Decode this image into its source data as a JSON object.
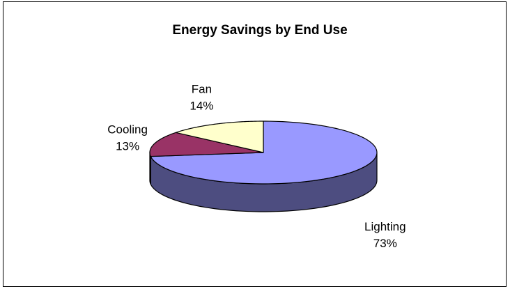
{
  "chart_data": {
    "type": "pie",
    "title": "Energy Savings by End Use",
    "labels": [
      "Lighting",
      "Cooling",
      "Fan"
    ],
    "values": [
      73,
      13,
      14
    ],
    "value_labels": [
      "73%",
      "13%",
      "14%"
    ],
    "colors": [
      "#9999ff",
      "#993366",
      "#ffffcc"
    ],
    "side_colors": [
      "#4d4d80",
      "#4d1a33",
      "#80806a"
    ],
    "three_d": true,
    "legend": "none"
  }
}
